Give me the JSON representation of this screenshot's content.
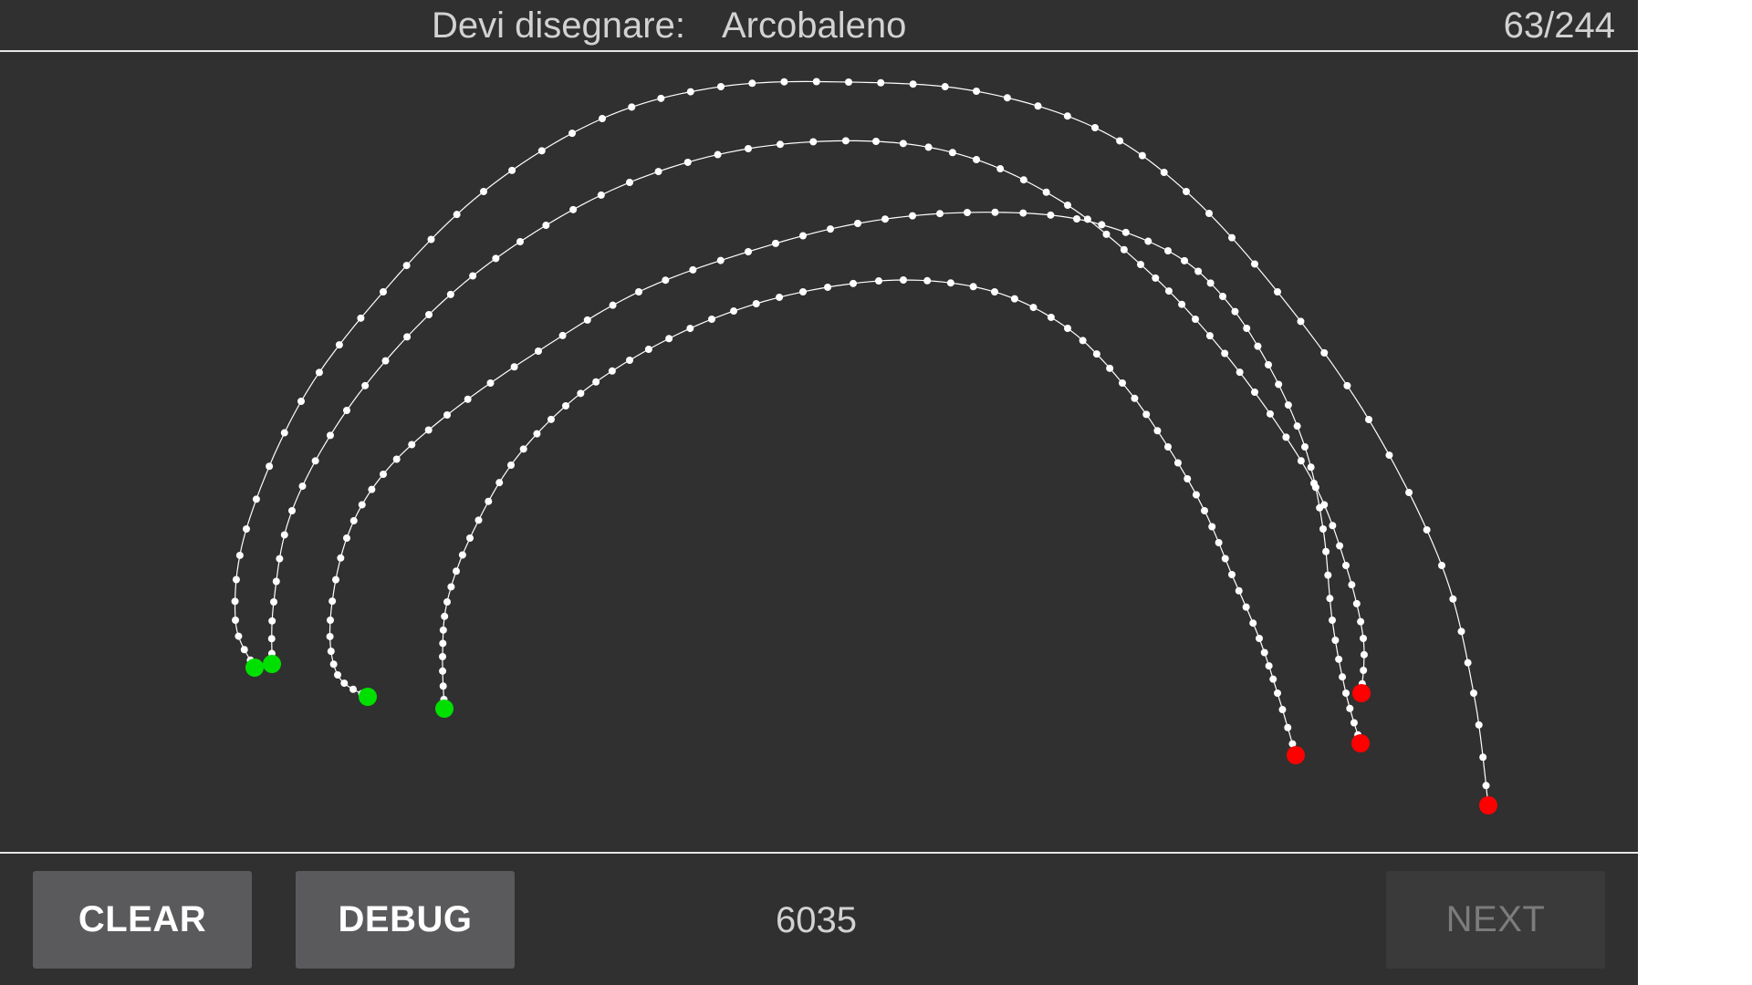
{
  "header": {
    "prompt_label": "Devi disegnare:",
    "prompt_word": "Arcobaleno",
    "progress": "63/244"
  },
  "footer": {
    "clear_label": "CLEAR",
    "debug_label": "DEBUG",
    "score": "6035",
    "next_label": "NEXT"
  },
  "colors": {
    "background": "#303030",
    "stroke": "#ffffff",
    "start_point": "#00e000",
    "end_point": "#ff0000",
    "divider": "#e6e6e6"
  },
  "drawing": {
    "strokes": [
      {
        "name": "arc-1",
        "start_marker": "green",
        "end_marker": "red"
      },
      {
        "name": "arc-2",
        "start_marker": "green",
        "end_marker": "red"
      },
      {
        "name": "arc-3",
        "start_marker": "green",
        "end_marker": "red"
      },
      {
        "name": "arc-4",
        "start_marker": "green",
        "end_marker": "red"
      }
    ]
  }
}
